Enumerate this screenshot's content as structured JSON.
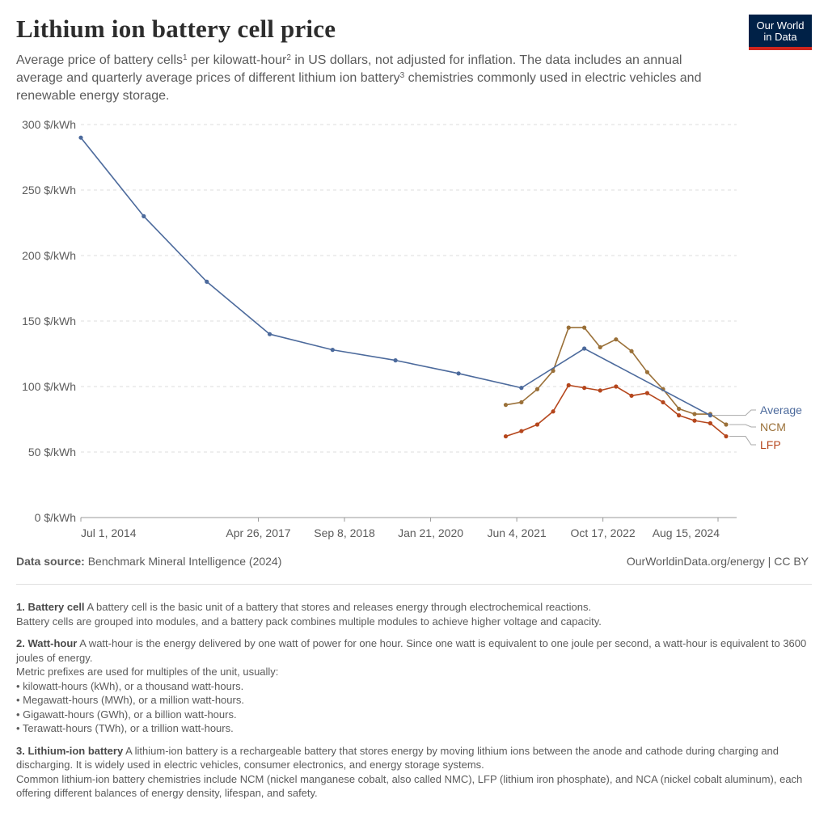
{
  "header": {
    "title": "Lithium ion battery cell price",
    "subtitle_parts": [
      "Average price of battery cells",
      "1",
      " per kilowatt-hour",
      "2",
      " in US dollars, not adjusted for inflation. The data includes an annual average and quarterly average prices of different lithium ion battery",
      "3",
      " chemistries commonly used in electric vehicles and renewable energy storage."
    ],
    "logo_line1": "Our World",
    "logo_line2": "in Data"
  },
  "colors": {
    "average": "#4c6a9c",
    "ncm": "#9a7038",
    "lfp": "#b5461c",
    "grid": "#dddddd",
    "axis_text": "#5b5b5b"
  },
  "chart_data": {
    "type": "line",
    "title": "Lithium ion battery cell price",
    "ylim": [
      0,
      300
    ],
    "yticks": [
      0,
      50,
      100,
      150,
      200,
      250,
      300
    ],
    "ytick_labels": [
      "0 $/kWh",
      "50 $/kWh",
      "100 $/kWh",
      "150 $/kWh",
      "200 $/kWh",
      "250 $/kWh",
      "300 $/kWh"
    ],
    "xlim": [
      "2014-07-01",
      "2024-12-01"
    ],
    "xticks": [
      "2014-07-01",
      "2017-04-26",
      "2018-09-08",
      "2020-01-21",
      "2021-06-04",
      "2022-10-17",
      "2024-08-15"
    ],
    "xtick_labels": [
      "Jul 1, 2014",
      "Apr 26, 2017",
      "Sep 8, 2018",
      "Jan 21, 2020",
      "Jun 4, 2021",
      "Oct 17, 2022",
      "Aug 15, 2024"
    ],
    "grid": "horizontal dashed",
    "legend_placement": "right, at line ends",
    "series": [
      {
        "name": "Average",
        "points": [
          [
            "2014-07-01",
            290
          ],
          [
            "2015-07-01",
            230
          ],
          [
            "2016-07-01",
            180
          ],
          [
            "2017-07-01",
            140
          ],
          [
            "2018-07-01",
            128
          ],
          [
            "2019-07-01",
            120
          ],
          [
            "2020-07-01",
            110
          ],
          [
            "2021-07-01",
            99
          ],
          [
            "2022-07-01",
            129
          ],
          [
            "2024-07-01",
            78
          ]
        ]
      },
      {
        "name": "NCM",
        "points": [
          [
            "2021-04-01",
            86
          ],
          [
            "2021-07-01",
            88
          ],
          [
            "2021-10-01",
            98
          ],
          [
            "2022-01-01",
            112
          ],
          [
            "2022-04-01",
            145
          ],
          [
            "2022-07-01",
            145
          ],
          [
            "2022-10-01",
            130
          ],
          [
            "2023-01-01",
            136
          ],
          [
            "2023-04-01",
            127
          ],
          [
            "2023-07-01",
            111
          ],
          [
            "2023-10-01",
            98
          ],
          [
            "2024-01-01",
            83
          ],
          [
            "2024-04-01",
            79
          ],
          [
            "2024-07-01",
            79
          ],
          [
            "2024-10-01",
            71
          ]
        ]
      },
      {
        "name": "LFP",
        "points": [
          [
            "2021-04-01",
            62
          ],
          [
            "2021-07-01",
            66
          ],
          [
            "2021-10-01",
            71
          ],
          [
            "2022-01-01",
            81
          ],
          [
            "2022-04-01",
            101
          ],
          [
            "2022-07-01",
            99
          ],
          [
            "2022-10-01",
            97
          ],
          [
            "2023-01-01",
            100
          ],
          [
            "2023-04-01",
            93
          ],
          [
            "2023-07-01",
            95
          ],
          [
            "2023-10-01",
            88
          ],
          [
            "2024-01-01",
            78
          ],
          [
            "2024-04-01",
            74
          ],
          [
            "2024-07-01",
            72
          ],
          [
            "2024-10-01",
            62
          ]
        ]
      }
    ]
  },
  "footer": {
    "source_label": "Data source:",
    "source_text": " Benchmark Mineral Intelligence (2024)",
    "credit": "OurWorldinData.org/energy | CC BY"
  },
  "notes": [
    {
      "term": "1. Battery cell",
      "lines": [
        " A battery cell is the basic unit of a battery that stores and releases energy through electrochemical reactions.",
        "Battery cells are grouped into modules, and a battery pack combines multiple modules to achieve higher voltage and capacity."
      ]
    },
    {
      "term": "2. Watt-hour",
      "lines": [
        " A watt-hour is the energy delivered by one watt of power for one hour. Since one watt is equivalent to one joule per second, a watt-hour is equivalent to 3600 joules of energy.",
        "Metric prefixes are used for multiples of the unit, usually:",
        "• kilowatt-hours (kWh), or a thousand watt-hours.",
        "• Megawatt-hours (MWh), or a million watt-hours.",
        "• Gigawatt-hours (GWh), or a billion watt-hours.",
        "• Terawatt-hours (TWh), or a trillion watt-hours."
      ]
    },
    {
      "term": "3. Lithium-ion battery",
      "lines": [
        " A lithium-ion battery is a rechargeable battery that stores energy by moving lithium ions between the anode and cathode during charging and discharging. It is widely used in electric vehicles, consumer electronics, and energy storage systems.",
        "Common lithium-ion battery chemistries include NCM (nickel manganese cobalt, also called NMC), LFP (lithium iron phosphate), and NCA (nickel cobalt aluminum), each offering different balances of energy density, lifespan, and safety."
      ]
    }
  ]
}
